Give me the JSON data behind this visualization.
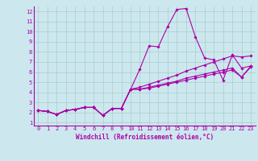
{
  "title": "",
  "xlabel": "Windchill (Refroidissement éolien,°C)",
  "ylabel": "",
  "bg_color": "#cce8ee",
  "line_color": "#aa00aa",
  "grid_color": "#aacccc",
  "xlim": [
    -0.5,
    23.5
  ],
  "ylim": [
    0.7,
    12.5
  ],
  "xticks": [
    0,
    1,
    2,
    3,
    4,
    5,
    6,
    7,
    8,
    9,
    10,
    11,
    12,
    13,
    14,
    15,
    16,
    17,
    18,
    19,
    20,
    21,
    22,
    23
  ],
  "yticks": [
    1,
    2,
    3,
    4,
    5,
    6,
    7,
    8,
    9,
    10,
    11,
    12
  ],
  "series": [
    [
      2.2,
      2.1,
      1.8,
      2.2,
      2.3,
      2.5,
      2.5,
      1.7,
      2.4,
      2.4,
      4.3,
      6.3,
      8.6,
      8.5,
      10.5,
      12.2,
      12.3,
      9.5,
      7.4,
      7.2,
      5.2,
      7.7,
      6.4,
      6.6
    ],
    [
      2.2,
      2.1,
      1.8,
      2.2,
      2.3,
      2.5,
      2.5,
      1.7,
      2.4,
      2.4,
      4.3,
      4.5,
      4.8,
      5.1,
      5.4,
      5.7,
      6.1,
      6.4,
      6.7,
      7.0,
      7.3,
      7.6,
      7.5,
      7.6
    ],
    [
      2.2,
      2.1,
      1.8,
      2.2,
      2.3,
      2.5,
      2.5,
      1.7,
      2.4,
      2.4,
      4.3,
      4.3,
      4.5,
      4.7,
      4.9,
      5.1,
      5.4,
      5.6,
      5.8,
      6.0,
      6.2,
      6.4,
      5.5,
      6.6
    ],
    [
      2.2,
      2.1,
      1.8,
      2.2,
      2.3,
      2.5,
      2.5,
      1.7,
      2.4,
      2.4,
      4.3,
      4.3,
      4.4,
      4.6,
      4.8,
      5.0,
      5.2,
      5.4,
      5.6,
      5.8,
      6.0,
      6.2,
      5.5,
      6.5
    ]
  ],
  "marker": "D",
  "marker_size": 1.8,
  "line_width": 0.8,
  "xlabel_fontsize": 5.5,
  "tick_fontsize": 5.0
}
